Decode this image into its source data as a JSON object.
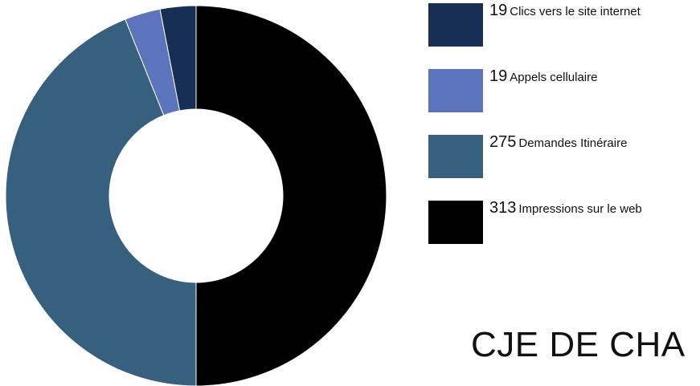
{
  "chart_data": {
    "type": "pie",
    "title": "CJE DE CHA",
    "donut": true,
    "series": [
      {
        "label": "Impressions sur le web",
        "value": 313,
        "color": "#000000"
      },
      {
        "label": "Demandes Itinéraire",
        "value": 275,
        "color": "#37607f"
      },
      {
        "label": "Appels cellulaire",
        "value": 19,
        "color": "#5b74bb"
      },
      {
        "label": "Clics vers le site internet",
        "value": 19,
        "color": "#172f55"
      }
    ],
    "legend_order": [
      3,
      2,
      1,
      0
    ],
    "legend_placement": "right"
  }
}
